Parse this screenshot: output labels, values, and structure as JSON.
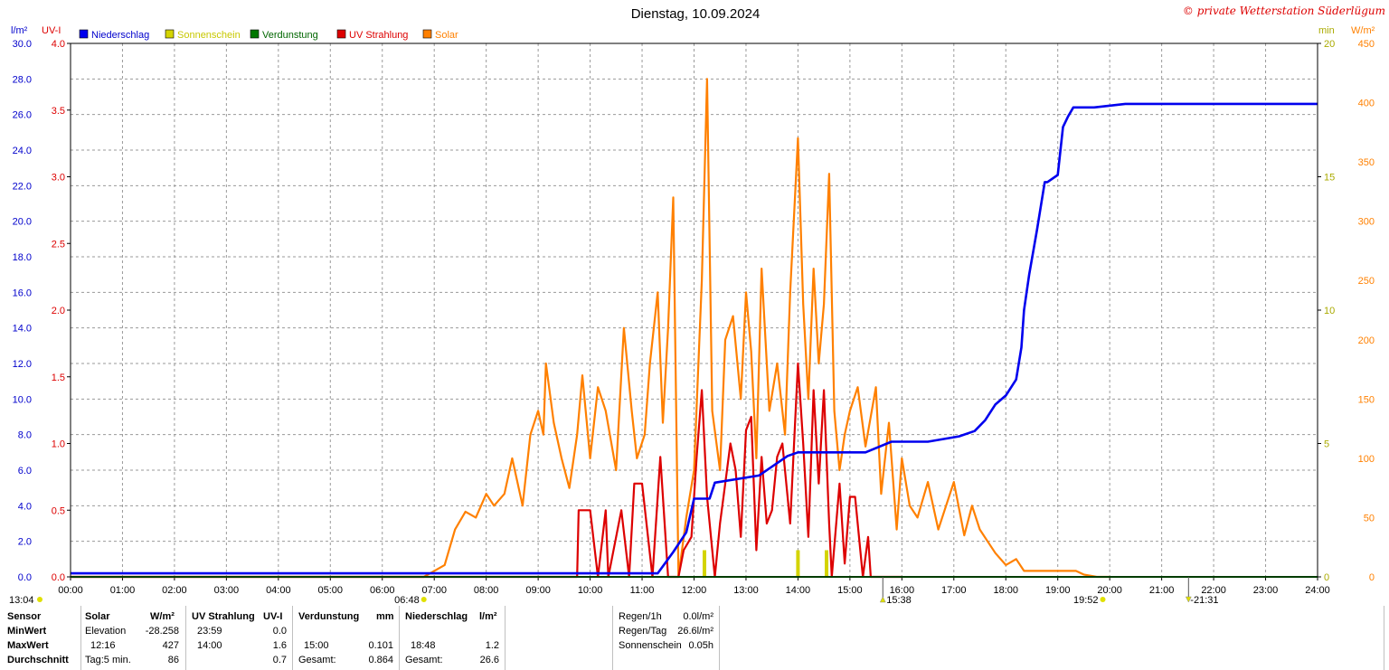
{
  "title": "Dienstag, 10.09.2024",
  "copyright": "© private Wetterstation Süderlügum",
  "colors": {
    "niederschlag": "#0000ee",
    "sonnenschein": "#d4d400",
    "verdunstung": "#007700",
    "uv": "#dd0000",
    "solar": "#ff8000",
    "grid": "#9a9a9a",
    "copyright": "#dd0000"
  },
  "chart_data": {
    "type": "line",
    "x_ticks": [
      "00:00",
      "01:00",
      "02:00",
      "03:00",
      "04:00",
      "05:00",
      "06:00",
      "07:00",
      "08:00",
      "09:00",
      "10:00",
      "11:00",
      "12:00",
      "13:00",
      "14:00",
      "15:00",
      "16:00",
      "17:00",
      "18:00",
      "19:00",
      "20:00",
      "21:00",
      "22:00",
      "23:00",
      "24:00"
    ],
    "axes": {
      "niederschlag": {
        "unit": "l/m²",
        "range": [
          0,
          30
        ],
        "ticks": [
          "0.0",
          "2.0",
          "4.0",
          "6.0",
          "8.0",
          "10.0",
          "12.0",
          "14.0",
          "16.0",
          "18.0",
          "20.0",
          "22.0",
          "24.0",
          "26.0",
          "28.0",
          "30.0"
        ]
      },
      "uv": {
        "unit": "UV-I",
        "range": [
          0,
          4
        ],
        "ticks": [
          "0.0",
          "0.5",
          "1.0",
          "1.5",
          "2.0",
          "2.5",
          "3.0",
          "3.5",
          "4.0"
        ]
      },
      "sonnenschein": {
        "unit": "min",
        "range": [
          0,
          20
        ],
        "ticks": [
          "0",
          "5",
          "10",
          "15",
          "20"
        ]
      },
      "solar": {
        "unit": "W/m²",
        "range": [
          0,
          450
        ],
        "ticks": [
          "0",
          "50",
          "100",
          "150",
          "200",
          "250",
          "300",
          "350",
          "400",
          "450"
        ]
      }
    },
    "legend": [
      "Niederschlag",
      "Sonnenschein",
      "Verdunstung",
      "UV Strahlung",
      "Solar"
    ],
    "legend_placement": "top-left",
    "grid": true,
    "series": [
      {
        "name": "Niederschlag",
        "axis": "niederschlag",
        "x": [
          0,
          6.8,
          11.3,
          11.6,
          11.85,
          12.0,
          12.3,
          12.4,
          13.25,
          13.5,
          13.8,
          14.0,
          14.5,
          15.3,
          15.8,
          16.4,
          16.5,
          17.1,
          17.4,
          17.6,
          17.8,
          18.0,
          18.2,
          18.3,
          18.35,
          18.45,
          18.6,
          18.75,
          18.8,
          19.0,
          19.1,
          19.2,
          19.3,
          19.45,
          19.7,
          20.3,
          24.0
        ],
        "y": [
          0.2,
          0.2,
          0.2,
          1.4,
          2.5,
          4.4,
          4.4,
          5.3,
          5.7,
          6.2,
          6.8,
          7.0,
          7.0,
          7.0,
          7.6,
          7.6,
          7.6,
          7.9,
          8.2,
          8.8,
          9.7,
          10.2,
          11.1,
          12.9,
          15.0,
          17.0,
          19.5,
          22.2,
          22.2,
          22.6,
          25.3,
          25.9,
          26.4,
          26.4,
          26.4,
          26.6,
          26.6
        ]
      },
      {
        "name": "Sonnenschein",
        "axis": "sonnenschein",
        "bars": [
          {
            "x": 12.2,
            "y": 1
          },
          {
            "x": 14.0,
            "y": 1
          },
          {
            "x": 14.55,
            "y": 1
          }
        ]
      },
      {
        "name": "Verdunstung",
        "axis": "niederschlag",
        "x": [
          0,
          24.0
        ],
        "y": [
          0,
          0
        ]
      },
      {
        "name": "UV Strahlung",
        "axis": "uv",
        "x": [
          0,
          9.75,
          9.78,
          10.0,
          10.15,
          10.3,
          10.35,
          10.6,
          10.75,
          10.85,
          11.0,
          11.2,
          11.35,
          11.5,
          11.7,
          11.8,
          11.95,
          12.05,
          12.15,
          12.25,
          12.4,
          12.5,
          12.6,
          12.7,
          12.8,
          12.9,
          13.0,
          13.1,
          13.2,
          13.3,
          13.4,
          13.5,
          13.6,
          13.7,
          13.85,
          14.0,
          14.1,
          14.2,
          14.3,
          14.4,
          14.5,
          14.6,
          14.65,
          14.8,
          14.9,
          15.0,
          15.1,
          15.25,
          15.35,
          15.4,
          16.0
        ],
        "y": [
          0,
          0,
          0.5,
          0.5,
          0,
          0.5,
          0,
          0.5,
          0,
          0.7,
          0.7,
          0,
          0.9,
          0,
          0,
          0.2,
          0.3,
          0.9,
          1.4,
          0.6,
          0,
          0.4,
          0.7,
          1.0,
          0.8,
          0.3,
          1.1,
          1.2,
          0.2,
          0.9,
          0.4,
          0.5,
          0.9,
          1.0,
          0.4,
          1.6,
          1.0,
          0.3,
          1.4,
          0.7,
          1.4,
          0.4,
          0,
          0.7,
          0.1,
          0.6,
          0.6,
          0,
          0.3,
          0,
          0
        ]
      },
      {
        "name": "Solar",
        "axis": "solar",
        "x": [
          0,
          6.8,
          7.2,
          7.4,
          7.6,
          7.8,
          8.0,
          8.15,
          8.35,
          8.5,
          8.7,
          8.85,
          9.0,
          9.1,
          9.15,
          9.3,
          9.45,
          9.6,
          9.75,
          9.85,
          10.0,
          10.15,
          10.3,
          10.5,
          10.65,
          10.8,
          10.9,
          11.05,
          11.15,
          11.3,
          11.4,
          11.5,
          11.6,
          11.7,
          11.85,
          12.0,
          12.15,
          12.25,
          12.35,
          12.5,
          12.6,
          12.75,
          12.9,
          13.0,
          13.1,
          13.2,
          13.3,
          13.45,
          13.6,
          13.75,
          13.85,
          14.0,
          14.1,
          14.2,
          14.3,
          14.4,
          14.5,
          14.6,
          14.7,
          14.8,
          14.9,
          15.0,
          15.15,
          15.3,
          15.5,
          15.6,
          15.75,
          15.9,
          16.0,
          16.15,
          16.3,
          16.5,
          16.7,
          16.85,
          17.0,
          17.2,
          17.35,
          17.5,
          17.65,
          17.8,
          18.0,
          18.2,
          18.35,
          18.6,
          18.8,
          19.0,
          19.2,
          19.35,
          19.5,
          19.75,
          20.0
        ],
        "y": [
          0,
          0,
          10,
          40,
          55,
          50,
          70,
          60,
          70,
          100,
          60,
          120,
          140,
          120,
          180,
          130,
          100,
          75,
          120,
          170,
          100,
          160,
          140,
          90,
          210,
          140,
          100,
          120,
          180,
          240,
          130,
          210,
          320,
          0,
          50,
          90,
          250,
          420,
          140,
          90,
          200,
          220,
          150,
          240,
          190,
          100,
          260,
          140,
          180,
          120,
          240,
          370,
          230,
          150,
          260,
          180,
          230,
          340,
          140,
          90,
          120,
          140,
          160,
          110,
          160,
          70,
          130,
          40,
          100,
          60,
          50,
          80,
          40,
          60,
          80,
          35,
          60,
          40,
          30,
          20,
          10,
          15,
          5,
          5,
          5,
          5,
          5,
          5,
          2,
          0,
          0
        ]
      }
    ],
    "markers": {
      "left_time": "13:04",
      "sunrise": "06:48",
      "solar_noon": "15:38",
      "sunset": "19:52",
      "moon": "-21:31"
    }
  },
  "stats": {
    "solar_header": {
      "sensor": "Sensor",
      "name": "Solar",
      "unit": "W/m²"
    },
    "uv_header": {
      "name": "UV Strahlung",
      "unit": "UV-I"
    },
    "verd_header": {
      "name": "Verdunstung",
      "unit": "mm"
    },
    "nied_header": {
      "name": "Niederschlag",
      "unit": "l/m²"
    },
    "row_labels": [
      "MinWert",
      "MaxWert",
      "Durchschnitt"
    ],
    "solar_rows": [
      {
        "label": "Elevation",
        "value": "-28.258"
      },
      {
        "label": "12:16",
        "value": "427"
      },
      {
        "label": "Tag:5 min.",
        "value": "86"
      }
    ],
    "uv_rows": [
      {
        "label": "23:59",
        "value": "0.0"
      },
      {
        "label": "14:00",
        "value": "1.6"
      },
      {
        "label": "",
        "value": "0.7"
      }
    ],
    "verd_rows": [
      {
        "label": "",
        "value": ""
      },
      {
        "label": "15:00",
        "value": "0.101"
      },
      {
        "label": "Gesamt:",
        "value": "0.864"
      }
    ],
    "nied_rows": [
      {
        "label": "",
        "value": ""
      },
      {
        "label": "18:48",
        "value": "1.2"
      },
      {
        "label": "Gesamt:",
        "value": "26.6"
      }
    ],
    "extra": [
      {
        "label": "Regen/1h",
        "value": "0.0l/m²"
      },
      {
        "label": "Regen/Tag",
        "value": "26.6l/m²"
      },
      {
        "label": "Sonnenschein",
        "value": "0.05h"
      }
    ]
  }
}
